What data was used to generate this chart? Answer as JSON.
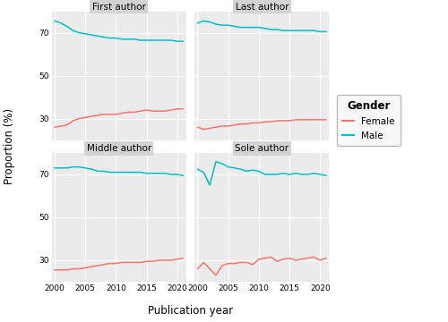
{
  "years": [
    2000,
    2001,
    2002,
    2003,
    2004,
    2005,
    2006,
    2007,
    2008,
    2009,
    2010,
    2011,
    2012,
    2013,
    2014,
    2015,
    2016,
    2017,
    2018,
    2019,
    2020,
    2021
  ],
  "first_author": {
    "male": [
      75.5,
      74.5,
      73.0,
      71.0,
      70.0,
      69.5,
      69.0,
      68.5,
      68.0,
      67.5,
      67.5,
      67.0,
      67.0,
      67.0,
      66.5,
      66.5,
      66.5,
      66.5,
      66.5,
      66.5,
      66.0,
      66.0
    ],
    "female": [
      26.0,
      26.5,
      27.0,
      29.0,
      30.0,
      30.5,
      31.0,
      31.5,
      32.0,
      32.0,
      32.0,
      32.5,
      33.0,
      33.0,
      33.5,
      34.0,
      33.5,
      33.5,
      33.5,
      34.0,
      34.5,
      34.5
    ]
  },
  "last_author": {
    "male": [
      74.5,
      75.5,
      75.0,
      74.0,
      73.5,
      73.5,
      73.0,
      72.5,
      72.5,
      72.5,
      72.5,
      72.0,
      71.5,
      71.5,
      71.0,
      71.0,
      71.0,
      71.0,
      71.0,
      71.0,
      70.5,
      70.5
    ],
    "female": [
      26.0,
      25.0,
      25.5,
      26.0,
      26.5,
      26.5,
      27.0,
      27.5,
      27.5,
      28.0,
      28.0,
      28.5,
      28.5,
      29.0,
      29.0,
      29.0,
      29.5,
      29.5,
      29.5,
      29.5,
      29.5,
      29.5
    ]
  },
  "middle_author": {
    "male": [
      73.0,
      73.0,
      73.0,
      73.5,
      73.5,
      73.0,
      72.5,
      71.5,
      71.5,
      71.0,
      71.0,
      71.0,
      71.0,
      71.0,
      71.0,
      70.5,
      70.5,
      70.5,
      70.5,
      70.0,
      70.0,
      69.5
    ],
    "female": [
      25.5,
      25.5,
      25.5,
      26.0,
      26.0,
      26.5,
      27.0,
      27.5,
      28.0,
      28.5,
      28.5,
      29.0,
      29.0,
      29.0,
      29.0,
      29.5,
      29.5,
      30.0,
      30.0,
      30.0,
      30.5,
      31.0
    ]
  },
  "sole_author": {
    "male": [
      72.5,
      71.0,
      65.0,
      76.0,
      75.0,
      73.5,
      73.0,
      72.5,
      71.5,
      72.0,
      71.5,
      70.0,
      70.0,
      70.0,
      70.5,
      70.0,
      70.5,
      70.0,
      70.0,
      70.5,
      70.0,
      69.5
    ],
    "female": [
      26.0,
      29.0,
      26.0,
      23.0,
      27.5,
      28.5,
      28.5,
      29.0,
      29.0,
      28.0,
      30.5,
      31.0,
      31.5,
      29.5,
      30.5,
      31.0,
      30.0,
      30.5,
      31.0,
      31.5,
      30.0,
      31.0
    ]
  },
  "color_male": "#00bfc4",
  "color_female": "#f8766d",
  "panel_bg": "#ebebeb",
  "strip_bg": "#d3d3d3",
  "grid_color": "#ffffff",
  "outer_bg": "#ffffff",
  "ylim": [
    20,
    80
  ],
  "yticks": [
    30,
    50,
    70
  ],
  "xticks": [
    2000,
    2005,
    2010,
    2015,
    2020
  ],
  "xlim": [
    1999.5,
    2021.5
  ],
  "xlabel": "Publication year",
  "ylabel": "Proportion (%)",
  "panel_titles": [
    "First author",
    "Last author",
    "Middle author",
    "Sole author"
  ],
  "legend_title": "Gender",
  "legend_female": "Female",
  "legend_male": "Male",
  "line_width": 1.1
}
